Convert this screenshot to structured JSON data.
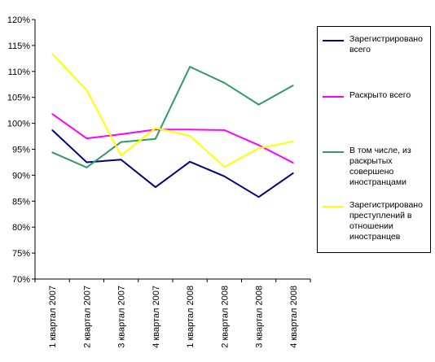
{
  "chart_data": {
    "type": "line",
    "categories": [
      "1 квартал 2007",
      "2 квартал 2007",
      "3 квартал 2007",
      "4 квартал 2007",
      "1 квартал 2008",
      "2 квартал 2008",
      "3 квартал 2008",
      "4 квартал 2008"
    ],
    "ylim": [
      70,
      120
    ],
    "y_ticks": [
      "70%",
      "75%",
      "80%",
      "85%",
      "90%",
      "95%",
      "100%",
      "105%",
      "110%",
      "115%",
      "120%"
    ],
    "y_tick_values": [
      70,
      75,
      80,
      85,
      90,
      95,
      100,
      105,
      110,
      115,
      120
    ],
    "grid": false,
    "legend_position": "right",
    "title": "",
    "xlabel": "",
    "ylabel": "",
    "series": [
      {
        "name": "Зарегистрировано всего",
        "color": "#000080",
        "values": [
          98.7,
          92.5,
          93.0,
          87.7,
          92.6,
          89.8,
          85.8,
          90.4
        ]
      },
      {
        "name": "Раскрыто всего",
        "color": "#ff00ff",
        "values": [
          101.8,
          97.1,
          97.9,
          98.8,
          98.8,
          98.7,
          95.8,
          92.4
        ]
      },
      {
        "name": "В том числе, из раскрытых совершено иностранцами",
        "color": "#339966",
        "values": [
          94.4,
          91.5,
          96.4,
          97.0,
          110.9,
          107.8,
          103.6,
          107.3
        ]
      },
      {
        "name": "Зарегистрировано преступлений в отношении иностранцев",
        "color": "#ffff00",
        "values": [
          113.4,
          106.4,
          93.8,
          99.1,
          97.6,
          91.6,
          95.2,
          96.5
        ]
      }
    ]
  }
}
